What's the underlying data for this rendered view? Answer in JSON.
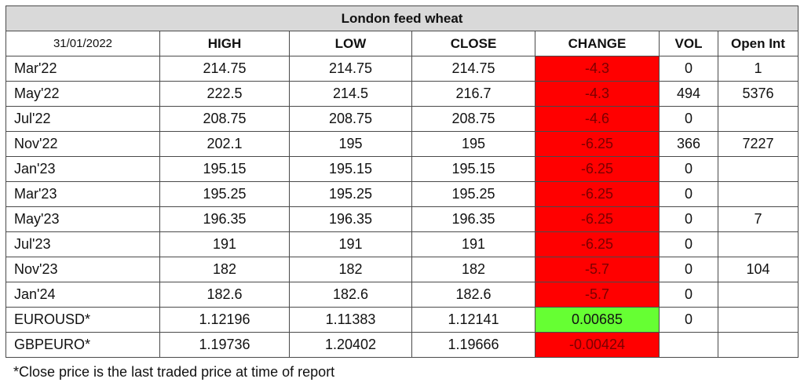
{
  "table": {
    "title": "London feed wheat",
    "headers": [
      "31/01/2022",
      "HIGH",
      "LOW",
      "CLOSE",
      "CHANGE",
      "VOL",
      "Open Int"
    ],
    "rows": [
      {
        "contract": "Mar'22",
        "high": "214.75",
        "low": "214.75",
        "close": "214.75",
        "change": "-4.3",
        "change_status": "negative",
        "vol": "0",
        "open_int": "1"
      },
      {
        "contract": "May'22",
        "high": "222.5",
        "low": "214.5",
        "close": "216.7",
        "change": "-4.3",
        "change_status": "negative",
        "vol": "494",
        "open_int": "5376"
      },
      {
        "contract": "Jul'22",
        "high": "208.75",
        "low": "208.75",
        "close": "208.75",
        "change": "-4.6",
        "change_status": "negative",
        "vol": "0",
        "open_int": ""
      },
      {
        "contract": "Nov'22",
        "high": "202.1",
        "low": "195",
        "close": "195",
        "change": "-6.25",
        "change_status": "negative",
        "vol": "366",
        "open_int": "7227"
      },
      {
        "contract": "Jan'23",
        "high": "195.15",
        "low": "195.15",
        "close": "195.15",
        "change": "-6.25",
        "change_status": "negative",
        "vol": "0",
        "open_int": ""
      },
      {
        "contract": "Mar'23",
        "high": "195.25",
        "low": "195.25",
        "close": "195.25",
        "change": "-6.25",
        "change_status": "negative",
        "vol": "0",
        "open_int": ""
      },
      {
        "contract": "May'23",
        "high": "196.35",
        "low": "196.35",
        "close": "196.35",
        "change": "-6.25",
        "change_status": "negative",
        "vol": "0",
        "open_int": "7"
      },
      {
        "contract": "Jul'23",
        "high": "191",
        "low": "191",
        "close": "191",
        "change": "-6.25",
        "change_status": "negative",
        "vol": "0",
        "open_int": ""
      },
      {
        "contract": "Nov'23",
        "high": "182",
        "low": "182",
        "close": "182",
        "change": "-5.7",
        "change_status": "negative",
        "vol": "0",
        "open_int": "104"
      },
      {
        "contract": "Jan'24",
        "high": "182.6",
        "low": "182.6",
        "close": "182.6",
        "change": "-5.7",
        "change_status": "negative",
        "vol": "0",
        "open_int": ""
      },
      {
        "contract": "EUROUSD*",
        "high": "1.12196",
        "low": "1.11383",
        "close": "1.12141",
        "change": "0.00685",
        "change_status": "positive",
        "vol": "0",
        "open_int": ""
      },
      {
        "contract": "GBPEURO*",
        "high": "1.19736",
        "low": "1.20402",
        "close": "1.19666",
        "change": "-0.00424",
        "change_status": "negative",
        "vol": "",
        "open_int": ""
      }
    ]
  },
  "colors": {
    "negative": "#ff0000",
    "positive": "#66ff33",
    "title_bg": "#d9d9d9"
  },
  "footnote": "*Close price is the last traded price at time of report"
}
